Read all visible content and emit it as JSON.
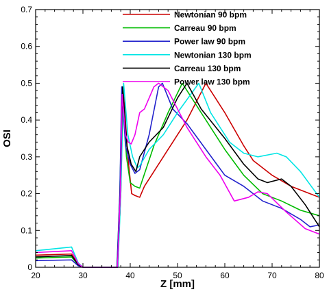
{
  "chart_data": {
    "type": "line",
    "title": "",
    "xlabel": "Z [mm]",
    "ylabel": "OSI",
    "xlim": [
      20,
      80
    ],
    "ylim": [
      0,
      0.7
    ],
    "x_ticks": [
      "20",
      "30",
      "40",
      "50",
      "60",
      "70",
      "80"
    ],
    "y_ticks": [
      "0",
      "0.1",
      "0.2",
      "0.3",
      "0.4",
      "0.5",
      "0.6",
      "0.7"
    ],
    "grid": false,
    "legend_position": "top",
    "series": [
      {
        "name": "Newtonian 90 bpm",
        "color": "#cc0000",
        "points": [
          [
            20,
            0.033
          ],
          [
            27.6,
            0.036
          ],
          [
            29,
            0.008
          ],
          [
            30,
            0
          ],
          [
            37.3,
            0
          ],
          [
            38,
            0.2
          ],
          [
            38.5,
            0.49
          ],
          [
            39.5,
            0.3
          ],
          [
            40.3,
            0.2
          ],
          [
            41,
            0.195
          ],
          [
            42,
            0.19
          ],
          [
            43,
            0.22
          ],
          [
            48,
            0.32
          ],
          [
            52,
            0.4
          ],
          [
            56,
            0.5
          ],
          [
            60,
            0.42
          ],
          [
            64,
            0.33
          ],
          [
            66,
            0.29
          ],
          [
            70,
            0.25
          ],
          [
            74,
            0.22
          ],
          [
            78,
            0.2
          ],
          [
            80,
            0.19
          ]
        ]
      },
      {
        "name": "Carreau 90 bpm",
        "color": "#00bb00",
        "points": [
          [
            20,
            0.025
          ],
          [
            27.6,
            0.028
          ],
          [
            29,
            0.006
          ],
          [
            30,
            0
          ],
          [
            37.2,
            0
          ],
          [
            37.8,
            0.2
          ],
          [
            38.3,
            0.49
          ],
          [
            39.2,
            0.3
          ],
          [
            40,
            0.23
          ],
          [
            41,
            0.22
          ],
          [
            42,
            0.215
          ],
          [
            45,
            0.33
          ],
          [
            48,
            0.42
          ],
          [
            51,
            0.5
          ],
          [
            55,
            0.42
          ],
          [
            60,
            0.32
          ],
          [
            64,
            0.25
          ],
          [
            68,
            0.2
          ],
          [
            72,
            0.18
          ],
          [
            76,
            0.155
          ],
          [
            80,
            0.14
          ]
        ]
      },
      {
        "name": "Power law 90 bpm",
        "color": "#2222cc",
        "points": [
          [
            20,
            0.018
          ],
          [
            27.6,
            0.02
          ],
          [
            29,
            0.004
          ],
          [
            30,
            0
          ],
          [
            37.2,
            0
          ],
          [
            37.8,
            0.2
          ],
          [
            38.2,
            0.49
          ],
          [
            39,
            0.33
          ],
          [
            40,
            0.28
          ],
          [
            41,
            0.255
          ],
          [
            42,
            0.265
          ],
          [
            44,
            0.36
          ],
          [
            46,
            0.49
          ],
          [
            46.8,
            0.5
          ],
          [
            49,
            0.43
          ],
          [
            52,
            0.39
          ],
          [
            56,
            0.32
          ],
          [
            60,
            0.25
          ],
          [
            64,
            0.22
          ],
          [
            68,
            0.18
          ],
          [
            72,
            0.16
          ],
          [
            76,
            0.13
          ],
          [
            78,
            0.11
          ],
          [
            80,
            0.115
          ]
        ]
      },
      {
        "name": "Newtonian 130 bpm",
        "color": "#00e5e5",
        "points": [
          [
            20,
            0.045
          ],
          [
            27.6,
            0.055
          ],
          [
            29,
            0.012
          ],
          [
            30,
            0
          ],
          [
            37.4,
            0
          ],
          [
            38,
            0.2
          ],
          [
            38.6,
            0.5
          ],
          [
            39.5,
            0.36
          ],
          [
            40.5,
            0.3
          ],
          [
            41.5,
            0.27
          ],
          [
            42,
            0.275
          ],
          [
            44,
            0.32
          ],
          [
            47,
            0.36
          ],
          [
            50,
            0.42
          ],
          [
            54.5,
            0.5
          ],
          [
            57,
            0.42
          ],
          [
            61,
            0.34
          ],
          [
            64,
            0.31
          ],
          [
            67,
            0.3
          ],
          [
            71,
            0.31
          ],
          [
            73,
            0.3
          ],
          [
            76,
            0.26
          ],
          [
            80,
            0.19
          ]
        ]
      },
      {
        "name": "Carreau 130 bpm",
        "color": "#000000",
        "points": [
          [
            20,
            0.028
          ],
          [
            27.6,
            0.032
          ],
          [
            29,
            0.007
          ],
          [
            30,
            0
          ],
          [
            37.3,
            0
          ],
          [
            37.9,
            0.2
          ],
          [
            38.4,
            0.49
          ],
          [
            39.3,
            0.33
          ],
          [
            40.2,
            0.28
          ],
          [
            41.2,
            0.26
          ],
          [
            42,
            0.3
          ],
          [
            44,
            0.34
          ],
          [
            47,
            0.38
          ],
          [
            50,
            0.46
          ],
          [
            52,
            0.5
          ],
          [
            55,
            0.43
          ],
          [
            60,
            0.35
          ],
          [
            64,
            0.28
          ],
          [
            67,
            0.24
          ],
          [
            69,
            0.23
          ],
          [
            72,
            0.24
          ],
          [
            74,
            0.22
          ],
          [
            77,
            0.17
          ],
          [
            80,
            0.11
          ]
        ]
      },
      {
        "name": "Power law 130 bpm",
        "color": "#ee00ee",
        "points": [
          [
            20,
            0.04
          ],
          [
            27.6,
            0.045
          ],
          [
            29,
            0.01
          ],
          [
            30,
            0
          ],
          [
            37.3,
            0
          ],
          [
            37.9,
            0.2
          ],
          [
            38.3,
            0.47
          ],
          [
            39,
            0.36
          ],
          [
            39.6,
            0.34
          ],
          [
            40.2,
            0.335
          ],
          [
            41,
            0.36
          ],
          [
            42,
            0.42
          ],
          [
            43,
            0.43
          ],
          [
            45,
            0.49
          ],
          [
            46,
            0.5
          ],
          [
            48,
            0.48
          ],
          [
            52,
            0.38
          ],
          [
            56,
            0.3
          ],
          [
            59,
            0.25
          ],
          [
            62,
            0.18
          ],
          [
            65,
            0.19
          ],
          [
            67,
            0.205
          ],
          [
            69,
            0.2
          ],
          [
            73,
            0.15
          ],
          [
            77,
            0.105
          ],
          [
            80,
            0.09
          ]
        ]
      }
    ]
  }
}
